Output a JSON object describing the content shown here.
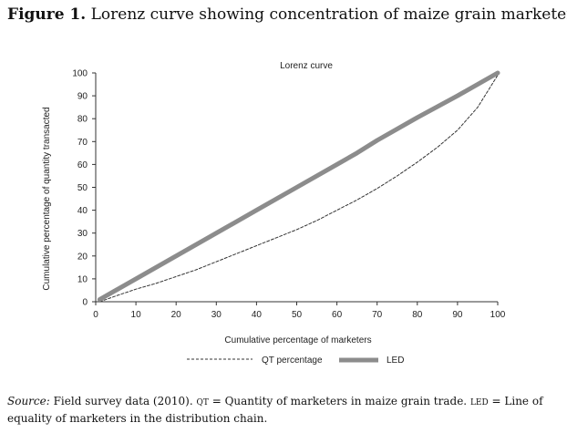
{
  "caption": {
    "figure_label": "Figure 1.",
    "figure_text": "Lorenz curve showing concentration of maize grain marketers"
  },
  "source": {
    "label": "Source:",
    "text1": "Field survey data (2010).",
    "abbr1": "QT",
    "text2": "= Quantity of marketers in maize grain trade.",
    "abbr2": "LED",
    "text3": "= Line of equality of marketers in the distribution chain."
  },
  "colors": {
    "led_line": "#8c8c8c",
    "qt_line": "#333333",
    "axis": "#333333"
  },
  "chart_data": {
    "type": "line",
    "title": "Lorenz curve",
    "xlabel": "Cumulative percentage of marketers",
    "ylabel": "Cumulative percentage of quantity transacted",
    "xlim": [
      0,
      100
    ],
    "ylim": [
      0,
      100
    ],
    "xticks": [
      0,
      10,
      20,
      30,
      40,
      50,
      60,
      70,
      80,
      90,
      100
    ],
    "yticks": [
      0,
      10,
      20,
      30,
      40,
      50,
      60,
      70,
      80,
      90,
      100
    ],
    "grid": false,
    "legend_position": "bottom",
    "series": [
      {
        "name": "QT percentage",
        "style": "dashed",
        "x": [
          1,
          5,
          10,
          15,
          20,
          25,
          30,
          35,
          40,
          45,
          50,
          55,
          60,
          65,
          70,
          75,
          80,
          85,
          90,
          95,
          100
        ],
        "y": [
          0,
          2.5,
          5.5,
          8,
          11,
          14,
          17.5,
          21,
          24.5,
          28,
          31.5,
          35.5,
          40,
          44.5,
          49.5,
          55,
          61,
          67.5,
          75,
          85,
          99
        ]
      },
      {
        "name": "LED",
        "style": "thick",
        "x": [
          1,
          10,
          20,
          30,
          40,
          50,
          60,
          65,
          70,
          80,
          90,
          100
        ],
        "y": [
          1,
          10,
          20,
          30,
          40,
          50,
          60,
          65,
          70.5,
          80.5,
          90,
          100
        ]
      }
    ]
  }
}
